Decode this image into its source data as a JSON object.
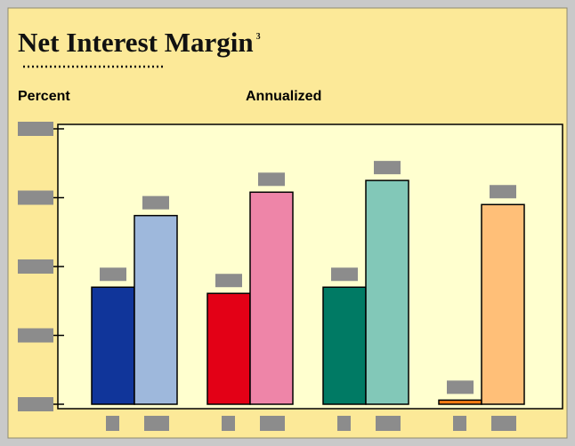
{
  "chart_data": {
    "type": "bar",
    "title": "Net Interest Margin",
    "title_note": "3",
    "y_label": "Percent",
    "subtitle": "Annualized",
    "categories": [
      null,
      null,
      null,
      null
    ],
    "series": [
      {
        "colors": [
          "#10359a",
          "#e30016",
          "#007a64",
          "#f47a12"
        ],
        "values": [
          1.7,
          1.61,
          1.7,
          0.06
        ]
      },
      {
        "colors": [
          "#9eb8dc",
          "#ee85a8",
          "#82c8b8",
          "#ffbf78"
        ],
        "values": [
          2.74,
          3.08,
          3.25,
          2.9
        ]
      }
    ],
    "ylim": [
      0,
      4
    ],
    "yticks": [
      0,
      1,
      2,
      3,
      4
    ]
  }
}
